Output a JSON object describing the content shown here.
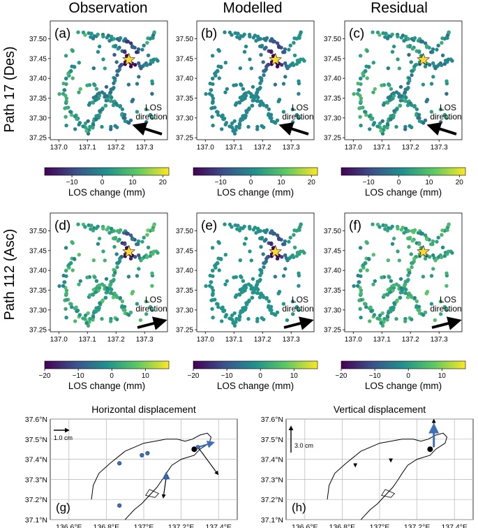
{
  "figure": {
    "column_titles": [
      "Observation",
      "Modelled",
      "Residual"
    ],
    "row_labels": [
      "Path 17 (Des)",
      "Path 112 (Asc)"
    ],
    "panel_letters": [
      "(a)",
      "(b)",
      "(c)",
      "(d)",
      "(e)",
      "(f)",
      "(g)",
      "(h)"
    ],
    "los_label": [
      "LOS",
      "direction"
    ],
    "colorbar_label": "LOS change (mm)",
    "colormap": [
      "#440154",
      "#3b528b",
      "#21918c",
      "#5ec962",
      "#fde725"
    ],
    "star_color": "#ffd92f"
  },
  "chart_data": [
    {
      "type": "scatter",
      "id": "insar-panels",
      "xlim": [
        136.97,
        137.38
      ],
      "ylim": [
        37.245,
        37.545
      ],
      "xticks": [
        137.0,
        137.1,
        137.2,
        137.3
      ],
      "xtick_labels": [
        "137.0",
        "137.1",
        "137.2",
        "137.3"
      ],
      "yticks": [
        37.25,
        37.3,
        37.35,
        37.4,
        37.45,
        37.5
      ],
      "ytick_labels": [
        "37.25",
        "37.30",
        "37.35",
        "37.40",
        "37.45",
        "37.50"
      ],
      "epicenter": [
        137.245,
        37.447
      ],
      "path17_colorbar": {
        "range": [
          -19,
          22
        ],
        "ticks": [
          -10,
          0,
          10,
          20
        ],
        "tick_labels": [
          "−10",
          "0",
          "10",
          "20"
        ]
      },
      "path112_colorbar": {
        "range": [
          -20,
          17
        ],
        "ticks": [
          -20,
          -10,
          0,
          10
        ],
        "tick_labels": [
          "−20",
          "−10",
          "0",
          "10"
        ]
      },
      "los_arrow_path17": "pointing west-northwest (descending look)",
      "los_arrow_path112": "pointing east-northeast (ascending look)"
    },
    {
      "type": "map",
      "id": "gnss-displacement",
      "titles": [
        "Horizontal displacement",
        "Vertical displacement"
      ],
      "xlim": [
        136.5,
        137.5
      ],
      "ylim": [
        37.1,
        37.6
      ],
      "xticks": [
        136.6,
        136.8,
        137.0,
        137.2,
        137.4
      ],
      "xtick_labels": [
        "136.6°E",
        "136.8°E",
        "137°E",
        "137.2°E",
        "137.4°E"
      ],
      "yticks": [
        37.1,
        37.2,
        37.3,
        37.4,
        37.5,
        37.6
      ],
      "ytick_labels": [
        "37.1°N",
        "37.2°N",
        "37.3°N",
        "37.4°N",
        "37.5°N",
        "37.6°N"
      ],
      "horizontal_scale": "1.0 cm",
      "vertical_scale": "3.0 cm",
      "epicenter": [
        137.27,
        37.45
      ],
      "horizontal_stations": [
        {
          "lon": 136.87,
          "lat": 37.38,
          "obs": [
            0.05,
            -0.05
          ],
          "mod": [
            0.05,
            -0.05
          ]
        },
        {
          "lon": 136.99,
          "lat": 37.42,
          "obs": [
            -0.15,
            0.0
          ],
          "mod": [
            -0.15,
            0.0
          ]
        },
        {
          "lon": 137.02,
          "lat": 37.43,
          "obs": [
            0.05,
            0.08
          ],
          "mod": [
            0.05,
            0.08
          ]
        },
        {
          "lon": 137.29,
          "lat": 37.46,
          "obs": [
            1.4,
            -1.9
          ],
          "mod": [
            1.0,
            0.3
          ]
        },
        {
          "lon": 137.12,
          "lat": 37.31,
          "obs": [
            -0.2,
            -1.4
          ],
          "mod": [
            0.0,
            0.2
          ]
        },
        {
          "lon": 136.87,
          "lat": 37.17,
          "obs": [
            0.0,
            0.0
          ],
          "mod": [
            0.0,
            0.0
          ]
        }
      ],
      "vertical_stations": [
        {
          "lon": 137.29,
          "lat": 37.46,
          "obs": 3.2,
          "mod": 2.4
        },
        {
          "lon": 136.87,
          "lat": 37.38,
          "obs": -0.3,
          "mod": -0.1
        },
        {
          "lon": 137.06,
          "lat": 37.4,
          "obs": -0.2,
          "mod": -0.1
        }
      ]
    }
  ]
}
